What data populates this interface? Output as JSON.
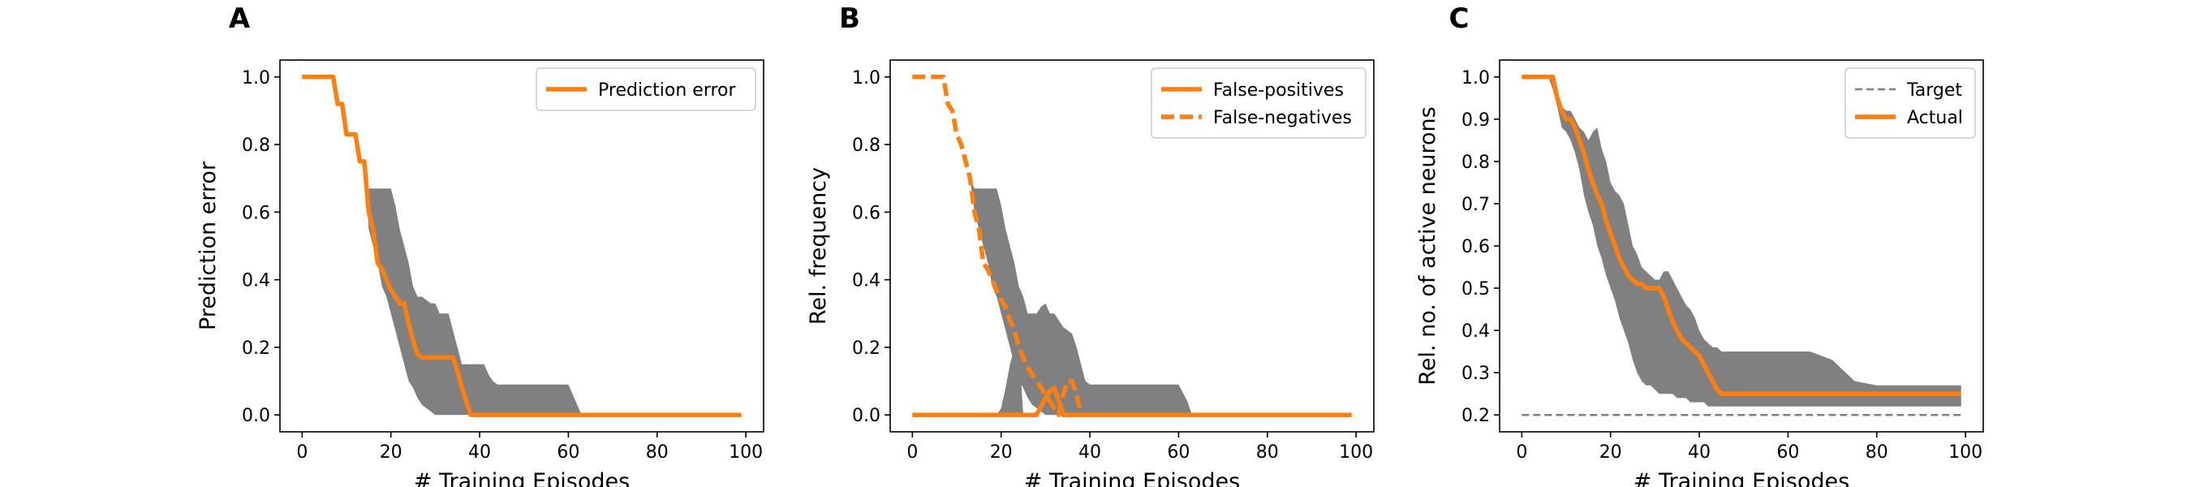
{
  "figure": {
    "background": "#ffffff",
    "colors": {
      "line": "#ff7f0e",
      "band": "#808080",
      "target": "#7f7f7f",
      "axis": "#000000"
    }
  },
  "chart_data": [
    {
      "id": "A",
      "type": "line",
      "panel_letter": "A",
      "xlabel": "# Training Episodes",
      "ylabel": "Prediction error",
      "xlim": [
        -5,
        104
      ],
      "ylim": [
        -0.05,
        1.05
      ],
      "xticks": [
        0,
        20,
        40,
        60,
        80,
        100
      ],
      "xtick_labels": [
        "0",
        "20",
        "40",
        "60",
        "80",
        "100"
      ],
      "yticks": [
        0.0,
        0.2,
        0.4,
        0.6,
        0.8,
        1.0
      ],
      "ytick_labels": [
        "0.0",
        "0.2",
        "0.4",
        "0.6",
        "0.8",
        "1.0"
      ],
      "legend": {
        "position": "top-right",
        "entries": [
          "Prediction error"
        ]
      },
      "bands": [
        {
          "x": [
            0,
            7,
            8,
            9,
            10,
            11,
            12,
            13,
            14,
            15,
            16,
            17,
            18,
            19,
            20,
            21,
            22,
            23,
            24,
            25,
            26,
            27,
            28,
            29,
            30,
            31,
            32,
            33,
            34,
            35,
            36,
            37,
            38,
            39,
            40,
            41,
            42,
            43,
            44,
            45,
            46,
            47,
            48,
            49,
            50,
            55,
            60,
            61,
            62,
            63,
            64,
            70,
            80,
            90,
            99
          ],
          "lower": [
            1.0,
            1.0,
            0.92,
            0.92,
            0.83,
            0.83,
            0.83,
            0.75,
            0.75,
            0.55,
            0.5,
            0.45,
            0.38,
            0.35,
            0.3,
            0.25,
            0.2,
            0.15,
            0.1,
            0.08,
            0.05,
            0.03,
            0.02,
            0.01,
            0.0,
            0.0,
            0.0,
            0.0,
            0.0,
            0.0,
            0.0,
            0.0,
            0.0,
            0.0,
            0.0,
            0.0,
            0.0,
            0.0,
            0.0,
            0.0,
            0.0,
            0.0,
            0.0,
            0.0,
            0.0,
            0.0,
            0.0,
            0.0,
            0.0,
            0.0,
            0.0,
            0.0,
            0.0,
            0.0,
            0.0
          ],
          "upper": [
            1.0,
            1.0,
            0.92,
            0.92,
            0.83,
            0.83,
            0.83,
            0.75,
            0.75,
            0.67,
            0.67,
            0.67,
            0.67,
            0.67,
            0.67,
            0.62,
            0.55,
            0.5,
            0.45,
            0.38,
            0.35,
            0.35,
            0.34,
            0.33,
            0.33,
            0.3,
            0.3,
            0.3,
            0.25,
            0.2,
            0.15,
            0.15,
            0.15,
            0.15,
            0.15,
            0.15,
            0.12,
            0.1,
            0.09,
            0.09,
            0.09,
            0.09,
            0.09,
            0.09,
            0.09,
            0.09,
            0.09,
            0.06,
            0.03,
            0.0,
            0.0,
            0.0,
            0.0,
            0.0,
            0.0
          ]
        }
      ],
      "series": [
        {
          "name": "Prediction error",
          "style": "solid",
          "x": [
            0,
            7,
            8,
            9,
            10,
            11,
            12,
            13,
            14,
            15,
            16,
            17,
            18,
            19,
            20,
            21,
            22,
            23,
            24,
            25,
            26,
            27,
            28,
            29,
            30,
            31,
            32,
            33,
            34,
            35,
            36,
            37,
            38,
            39,
            40,
            45,
            50,
            60,
            70,
            80,
            90,
            99
          ],
          "y": [
            1.0,
            1.0,
            0.92,
            0.92,
            0.83,
            0.83,
            0.83,
            0.75,
            0.75,
            0.6,
            0.55,
            0.45,
            0.43,
            0.4,
            0.37,
            0.35,
            0.33,
            0.33,
            0.27,
            0.22,
            0.18,
            0.17,
            0.17,
            0.17,
            0.17,
            0.17,
            0.17,
            0.17,
            0.17,
            0.13,
            0.08,
            0.04,
            0.0,
            0.0,
            0.0,
            0.0,
            0.0,
            0.0,
            0.0,
            0.0,
            0.0,
            0.0
          ]
        }
      ]
    },
    {
      "id": "B",
      "type": "line",
      "panel_letter": "B",
      "xlabel": "# Training Episodes",
      "ylabel": "Rel. frequency",
      "xlim": [
        -5,
        104
      ],
      "ylim": [
        -0.05,
        1.05
      ],
      "xticks": [
        0,
        20,
        40,
        60,
        80,
        100
      ],
      "xtick_labels": [
        "0",
        "20",
        "40",
        "60",
        "80",
        "100"
      ],
      "yticks": [
        0.0,
        0.2,
        0.4,
        0.6,
        0.8,
        1.0
      ],
      "ytick_labels": [
        "0.0",
        "0.2",
        "0.4",
        "0.6",
        "0.8",
        "1.0"
      ],
      "legend": {
        "position": "top-right",
        "entries": [
          "False-positives",
          "False-negatives"
        ]
      },
      "bands": [
        {
          "x": [
            0,
            5,
            6,
            7,
            8,
            9,
            10,
            11,
            12,
            13,
            14,
            15,
            16,
            17,
            18,
            19,
            20,
            21,
            22,
            23,
            24,
            25,
            26,
            27,
            28,
            29,
            30,
            31,
            32,
            33,
            34,
            35,
            36,
            37,
            38,
            39,
            40,
            42,
            45,
            50,
            55,
            60,
            62,
            63,
            70,
            80,
            90,
            99
          ],
          "lower": [
            1.0,
            1.0,
            1.0,
            1.0,
            0.92,
            0.92,
            0.83,
            0.83,
            0.75,
            0.7,
            0.6,
            0.55,
            0.5,
            0.45,
            0.38,
            0.35,
            0.3,
            0.25,
            0.2,
            0.15,
            0.1,
            0.08,
            0.05,
            0.03,
            0.02,
            0.01,
            0.0,
            0.0,
            0.0,
            0.0,
            0.0,
            0.0,
            0.0,
            0.0,
            0.0,
            0.0,
            0.0,
            0.0,
            0.0,
            0.0,
            0.0,
            0.0,
            0.0,
            0.0,
            0.0,
            0.0,
            0.0,
            0.0
          ],
          "upper": [
            1.0,
            1.0,
            1.0,
            1.0,
            0.92,
            0.92,
            0.83,
            0.83,
            0.75,
            0.7,
            0.67,
            0.67,
            0.67,
            0.67,
            0.67,
            0.67,
            0.62,
            0.55,
            0.5,
            0.45,
            0.38,
            0.35,
            0.3,
            0.3,
            0.3,
            0.32,
            0.33,
            0.3,
            0.3,
            0.28,
            0.26,
            0.25,
            0.24,
            0.2,
            0.15,
            0.1,
            0.09,
            0.09,
            0.09,
            0.09,
            0.09,
            0.09,
            0.04,
            0.0,
            0.0,
            0.0,
            0.0,
            0.0
          ]
        },
        {
          "x": [
            18,
            19,
            20,
            21,
            22,
            23,
            24,
            25,
            26,
            27,
            28
          ],
          "lower": [
            0.0,
            0.0,
            0.0,
            0.0,
            0.0,
            0.0,
            0.0,
            0.0,
            0.0,
            0.0,
            0.0
          ],
          "upper": [
            0.0,
            0.0,
            0.02,
            0.08,
            0.15,
            0.2,
            0.2,
            0.0,
            0.0,
            0.0,
            0.0
          ]
        }
      ],
      "series": [
        {
          "name": "False-positives",
          "style": "solid",
          "x": [
            0,
            10,
            20,
            28,
            30,
            31,
            32,
            33,
            34,
            35,
            40,
            50,
            60,
            70,
            80,
            90,
            99
          ],
          "y": [
            0.0,
            0.0,
            0.0,
            0.0,
            0.05,
            0.07,
            0.08,
            0.04,
            0.0,
            0.0,
            0.0,
            0.0,
            0.0,
            0.0,
            0.0,
            0.0,
            0.0
          ]
        },
        {
          "name": "False-negatives",
          "style": "dashed",
          "x": [
            0,
            6,
            7,
            8,
            9,
            10,
            11,
            12,
            13,
            14,
            15,
            16,
            17,
            18,
            19,
            20,
            21,
            22,
            23,
            24,
            25,
            26,
            27,
            28,
            29,
            30,
            31,
            32,
            33,
            34,
            35,
            36,
            37,
            38
          ],
          "y": [
            1.0,
            1.0,
            1.0,
            0.92,
            0.9,
            0.83,
            0.8,
            0.75,
            0.7,
            0.6,
            0.55,
            0.45,
            0.43,
            0.4,
            0.37,
            0.34,
            0.32,
            0.28,
            0.25,
            0.2,
            0.17,
            0.14,
            0.12,
            0.1,
            0.08,
            0.06,
            0.04,
            0.02,
            0.0,
            0.06,
            0.1,
            0.1,
            0.06,
            0.0
          ]
        }
      ]
    },
    {
      "id": "C",
      "type": "line",
      "panel_letter": "C",
      "xlabel": "# Training Episodes",
      "ylabel": "Rel. no. of active neurons",
      "xlim": [
        -5,
        104
      ],
      "ylim": [
        0.16,
        1.04
      ],
      "xticks": [
        0,
        20,
        40,
        60,
        80,
        100
      ],
      "xtick_labels": [
        "0",
        "20",
        "40",
        "60",
        "80",
        "100"
      ],
      "yticks": [
        0.2,
        0.3,
        0.4,
        0.5,
        0.6,
        0.7,
        0.8,
        0.9,
        1.0
      ],
      "ytick_labels": [
        "0.2",
        "0.3",
        "0.4",
        "0.5",
        "0.6",
        "0.7",
        "0.8",
        "0.9",
        "1.0"
      ],
      "legend": {
        "position": "top-right",
        "entries": [
          "Target",
          "Actual"
        ]
      },
      "bands": [
        {
          "x": [
            0,
            6,
            7,
            8,
            9,
            10,
            11,
            12,
            13,
            14,
            15,
            16,
            17,
            18,
            19,
            20,
            21,
            22,
            23,
            24,
            25,
            26,
            27,
            28,
            29,
            30,
            31,
            32,
            33,
            34,
            35,
            36,
            37,
            38,
            39,
            40,
            41,
            42,
            43,
            44,
            45,
            46,
            47,
            48,
            49,
            50,
            55,
            60,
            65,
            70,
            75,
            80,
            90,
            99
          ],
          "lower": [
            1.0,
            1.0,
            0.97,
            0.93,
            0.88,
            0.87,
            0.85,
            0.82,
            0.78,
            0.72,
            0.68,
            0.65,
            0.6,
            0.57,
            0.53,
            0.5,
            0.47,
            0.43,
            0.4,
            0.37,
            0.33,
            0.3,
            0.28,
            0.27,
            0.27,
            0.26,
            0.25,
            0.25,
            0.25,
            0.25,
            0.24,
            0.24,
            0.24,
            0.23,
            0.23,
            0.23,
            0.23,
            0.22,
            0.22,
            0.22,
            0.22,
            0.22,
            0.22,
            0.22,
            0.22,
            0.22,
            0.22,
            0.22,
            0.22,
            0.22,
            0.22,
            0.22,
            0.22,
            0.22
          ],
          "upper": [
            1.0,
            1.0,
            1.0,
            0.97,
            0.93,
            0.92,
            0.92,
            0.9,
            0.88,
            0.87,
            0.85,
            0.87,
            0.88,
            0.83,
            0.8,
            0.75,
            0.73,
            0.72,
            0.7,
            0.65,
            0.6,
            0.58,
            0.55,
            0.54,
            0.53,
            0.52,
            0.52,
            0.54,
            0.54,
            0.52,
            0.5,
            0.48,
            0.46,
            0.45,
            0.43,
            0.4,
            0.38,
            0.37,
            0.36,
            0.36,
            0.35,
            0.35,
            0.35,
            0.35,
            0.35,
            0.35,
            0.35,
            0.35,
            0.35,
            0.33,
            0.28,
            0.27,
            0.27,
            0.27
          ]
        }
      ],
      "series": [
        {
          "name": "Target",
          "style": "dashed-thin",
          "x": [
            0,
            99
          ],
          "y": [
            0.2,
            0.2
          ]
        },
        {
          "name": "Actual",
          "style": "solid",
          "x": [
            0,
            7,
            8,
            9,
            10,
            11,
            12,
            13,
            14,
            15,
            16,
            17,
            18,
            19,
            20,
            21,
            22,
            23,
            24,
            25,
            26,
            27,
            28,
            29,
            30,
            31,
            32,
            33,
            34,
            35,
            36,
            37,
            38,
            39,
            40,
            41,
            42,
            43,
            44,
            45,
            46,
            47,
            48,
            49,
            50,
            60,
            70,
            80,
            90,
            99
          ],
          "y": [
            1.0,
            1.0,
            0.95,
            0.92,
            0.9,
            0.9,
            0.88,
            0.85,
            0.82,
            0.78,
            0.75,
            0.72,
            0.7,
            0.66,
            0.63,
            0.6,
            0.57,
            0.55,
            0.53,
            0.52,
            0.51,
            0.51,
            0.5,
            0.5,
            0.5,
            0.5,
            0.48,
            0.45,
            0.42,
            0.4,
            0.38,
            0.37,
            0.36,
            0.35,
            0.34,
            0.32,
            0.3,
            0.28,
            0.26,
            0.25,
            0.25,
            0.25,
            0.25,
            0.25,
            0.25,
            0.25,
            0.25,
            0.25,
            0.25,
            0.25
          ]
        }
      ]
    }
  ]
}
